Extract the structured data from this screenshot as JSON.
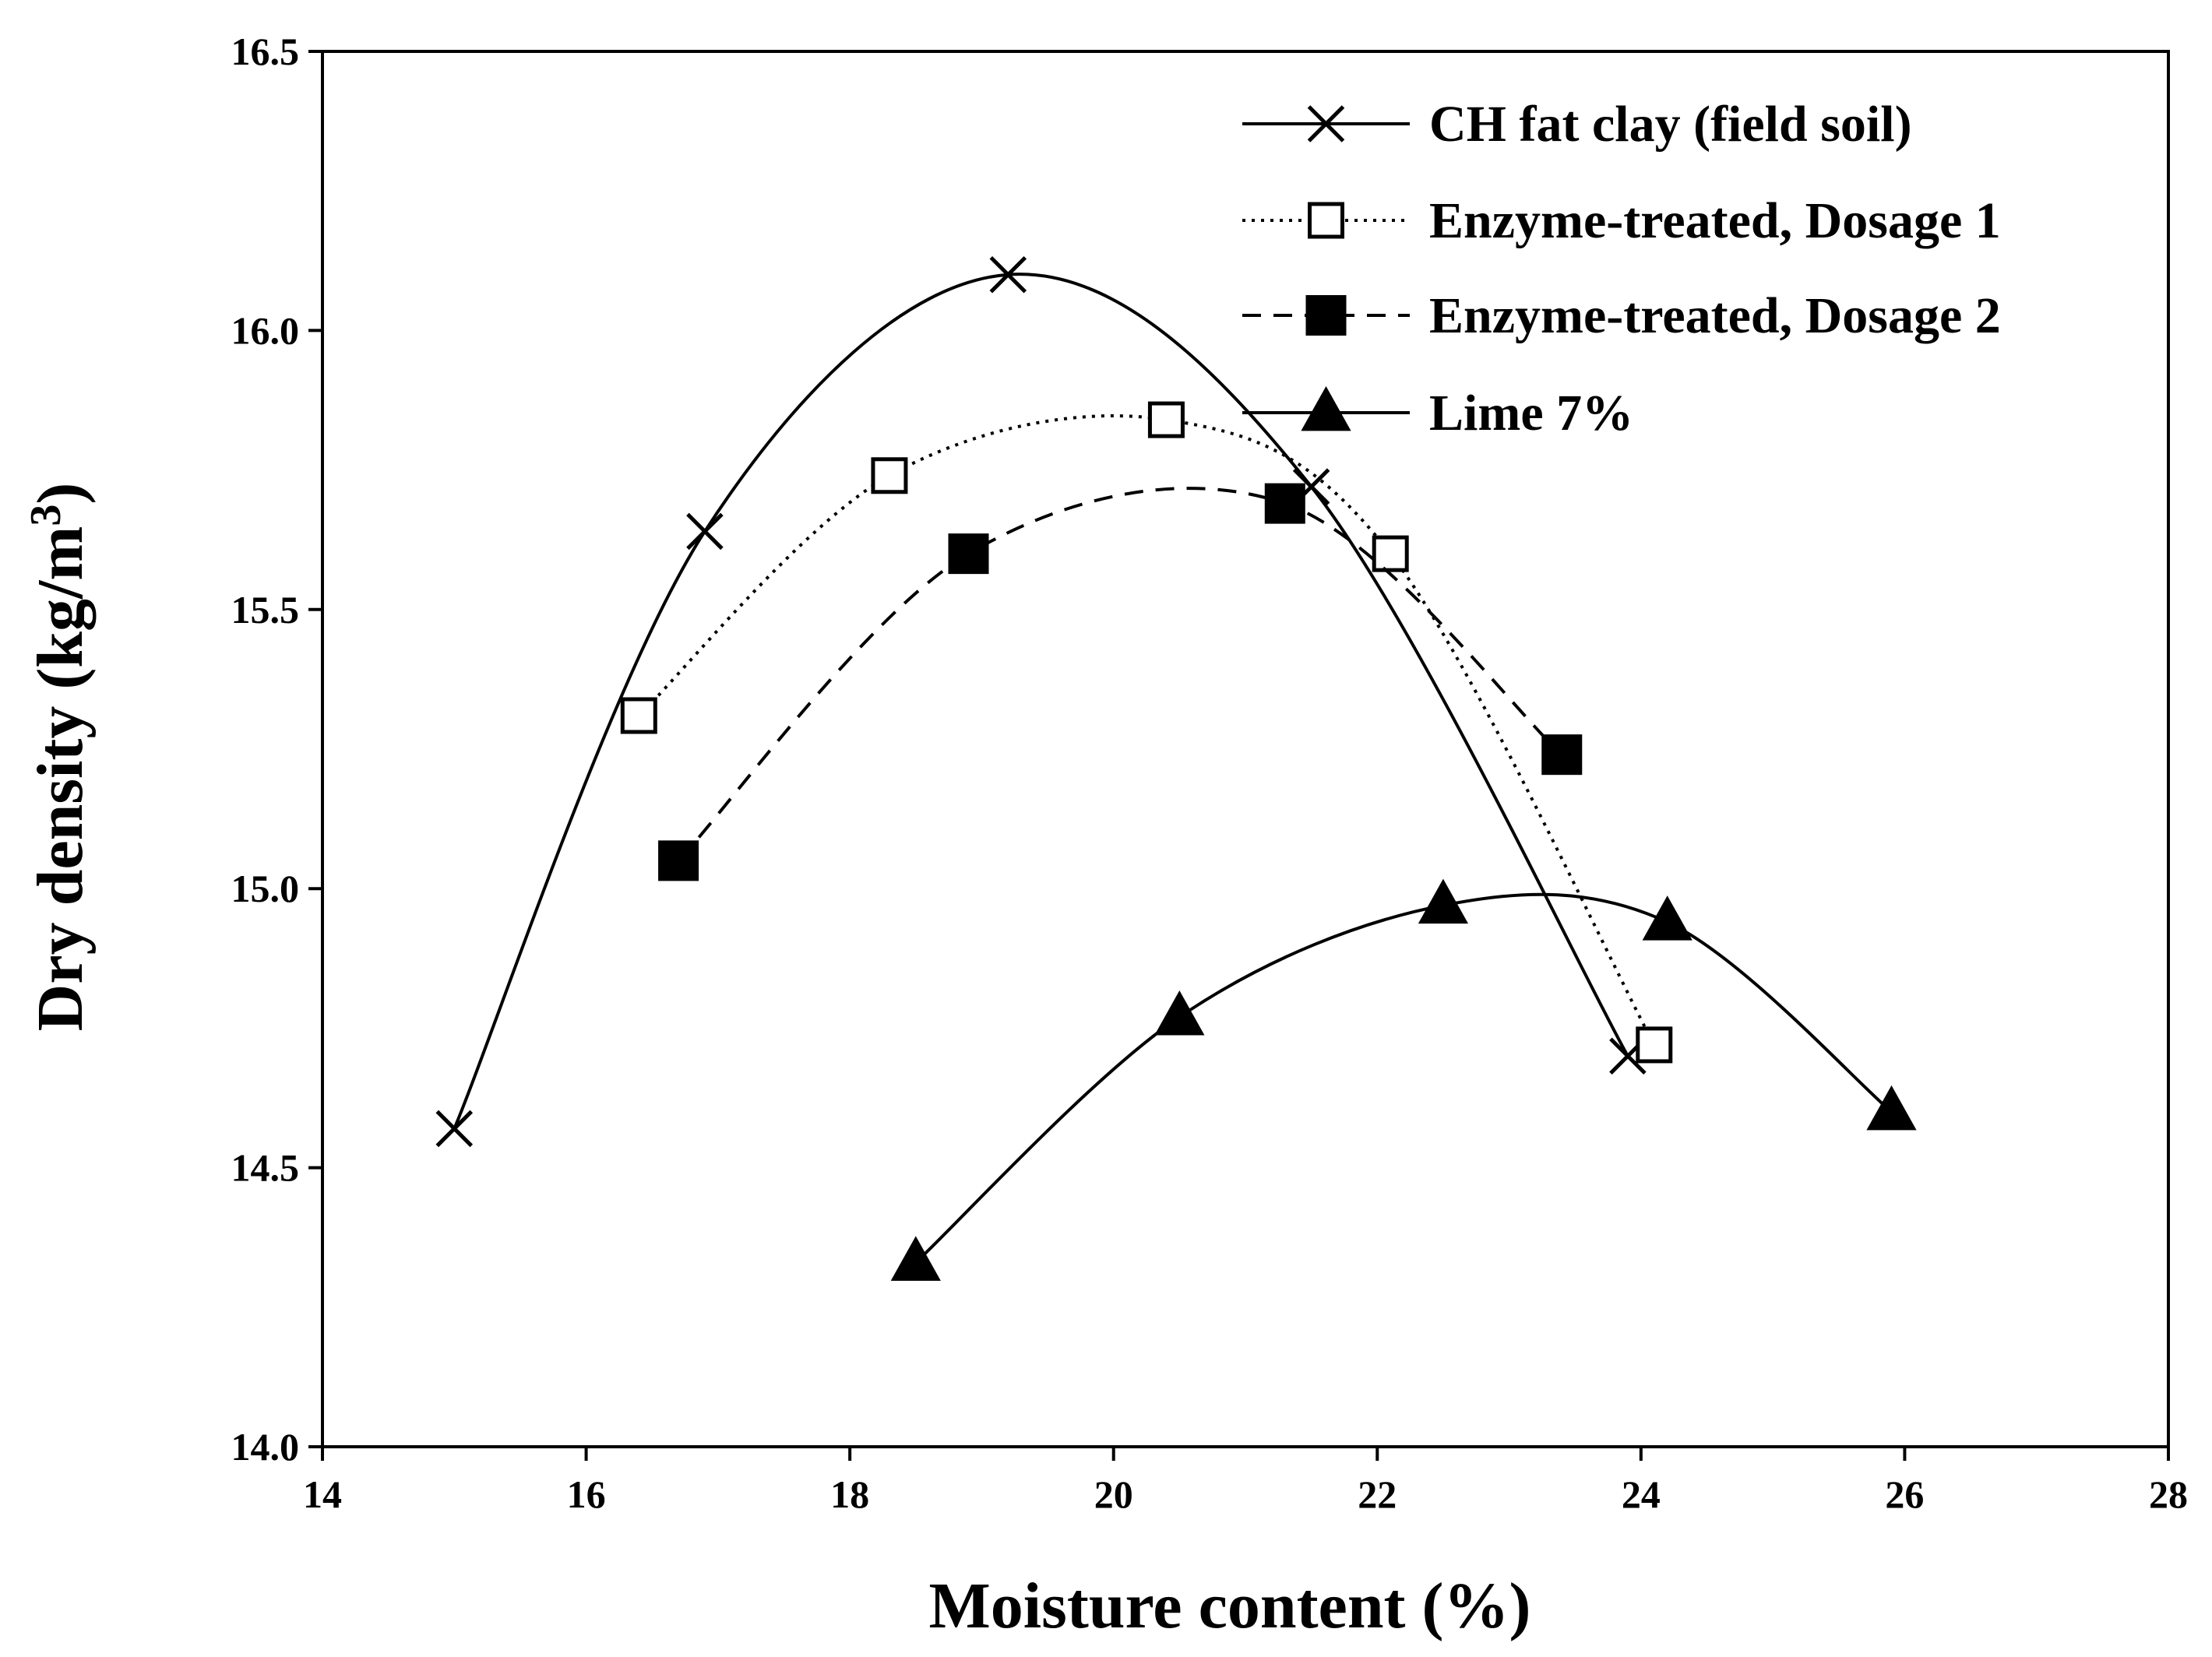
{
  "chart_data": {
    "type": "line",
    "xlabel": "Moisture content (%)",
    "ylabel": "Dry density (kg/m",
    "ylabel_sup": "3",
    "ylabel_close": ")",
    "xlim": [
      14,
      28
    ],
    "ylim": [
      14.0,
      16.5
    ],
    "x_ticks": [
      "14",
      "16",
      "18",
      "20",
      "22",
      "24",
      "26",
      "28"
    ],
    "y_ticks": [
      "14.0",
      "14.5",
      "15.0",
      "15.5",
      "16.0",
      "16.5"
    ],
    "grid": false,
    "legend_position": "top-right",
    "series": [
      {
        "name": "CH fat clay (field soil)",
        "marker": "x",
        "line_style": "solid",
        "x": [
          15.0,
          16.9,
          19.2,
          21.5,
          23.9
        ],
        "y": [
          14.57,
          15.64,
          16.1,
          15.72,
          14.7
        ]
      },
      {
        "name": "Enzyme-treated, Dosage 1",
        "marker": "open-square",
        "line_style": "dotted",
        "x": [
          16.4,
          18.3,
          20.4,
          22.1,
          24.1
        ],
        "y": [
          15.31,
          15.74,
          15.84,
          15.6,
          14.72
        ]
      },
      {
        "name": "Enzyme-treated, Dosage 2",
        "marker": "filled-square",
        "line_style": "dashed",
        "x": [
          16.7,
          18.9,
          21.3,
          23.4
        ],
        "y": [
          15.05,
          15.6,
          15.69,
          15.24
        ]
      },
      {
        "name": "Lime 7%",
        "marker": "filled-triangle",
        "line_style": "solid",
        "x": [
          18.5,
          20.5,
          22.5,
          24.2,
          25.9
        ],
        "y": [
          14.33,
          14.77,
          14.97,
          14.94,
          14.6
        ]
      }
    ]
  }
}
